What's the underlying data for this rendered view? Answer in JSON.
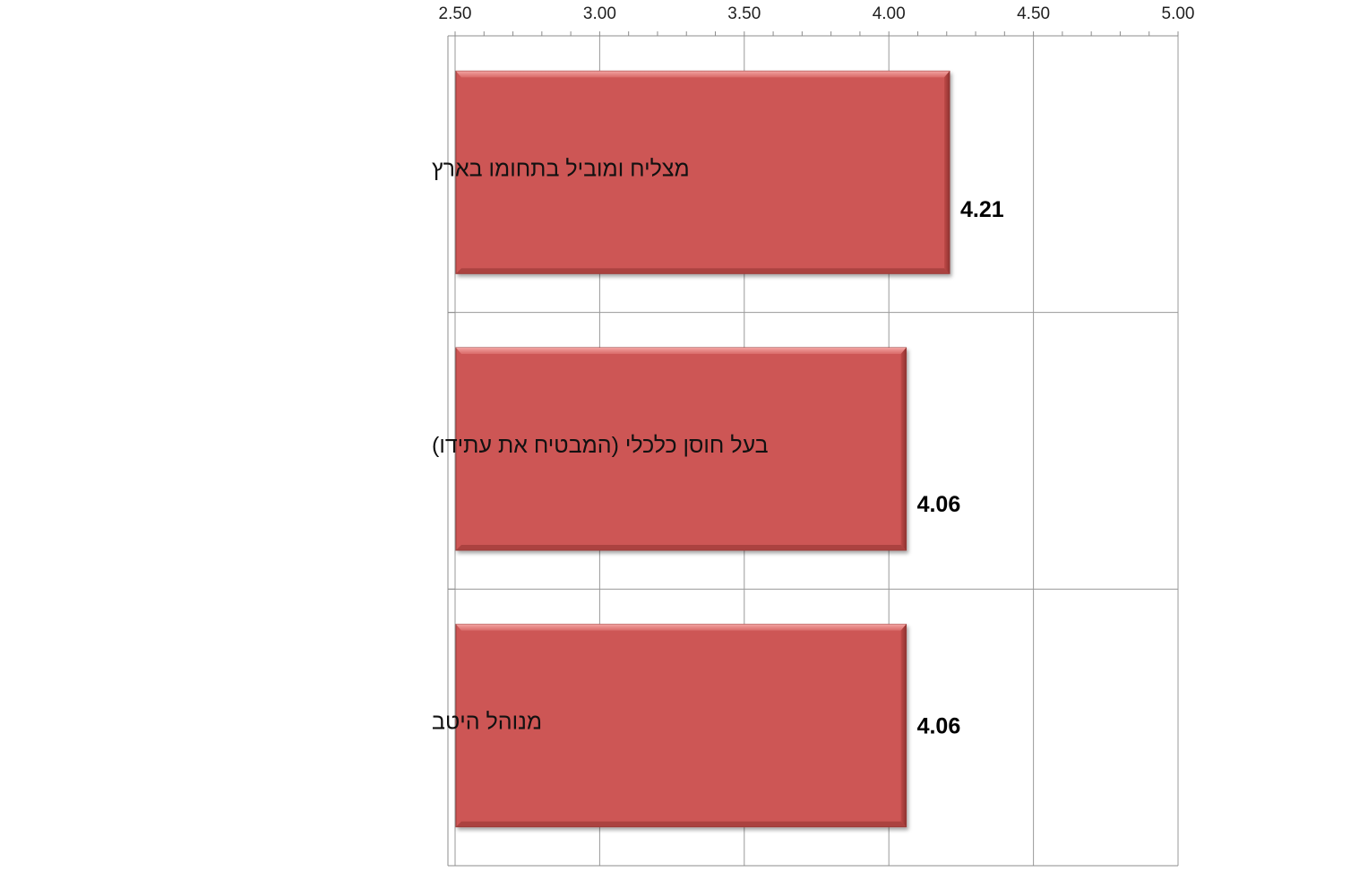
{
  "chart_data": {
    "type": "bar",
    "orientation": "horizontal",
    "categories": [
      "מצליח ומוביל בתחומו בארץ",
      "בעל חוסן כלכלי (המבטיח את עתידו)",
      "מנוהל היטב"
    ],
    "values": [
      4.21,
      4.06,
      4.06
    ],
    "value_labels": [
      "4.21",
      "4.06",
      "4.06"
    ],
    "xlim": [
      2.5,
      5.0
    ],
    "x_ticks": [
      "2.50",
      "3.00",
      "3.50",
      "4.00",
      "4.50",
      "5.00"
    ],
    "x_axis_position": "top",
    "grid": true,
    "legend": "none",
    "title": "",
    "xlabel": "",
    "ylabel": "",
    "colors": {
      "bar": "#cd5755",
      "bar_highlight": "#e58a88",
      "bar_shadow": "#9c3a38"
    }
  }
}
